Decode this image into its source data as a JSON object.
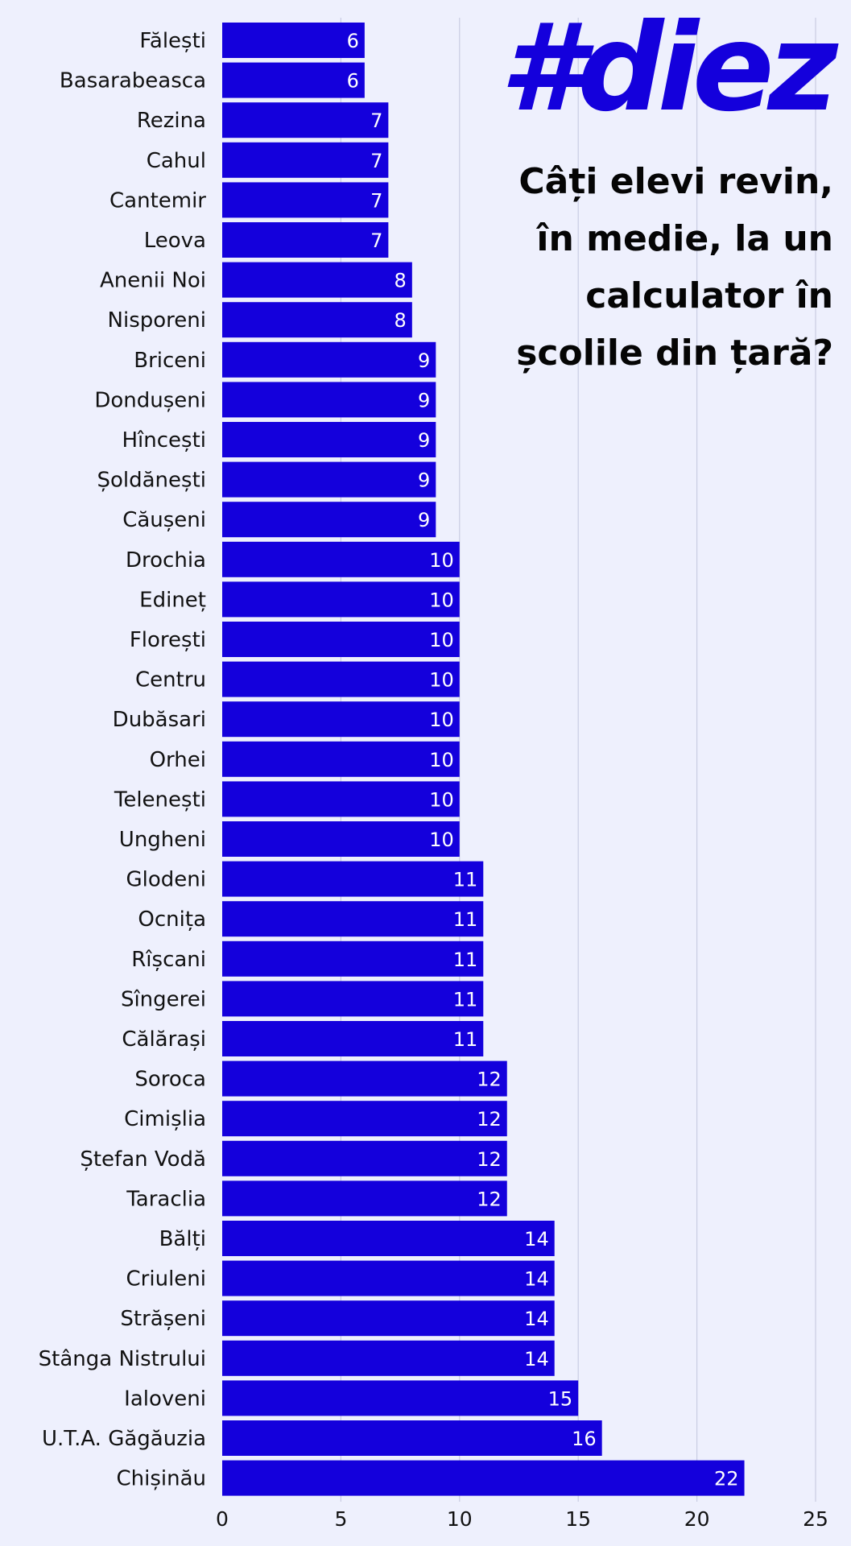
{
  "brand": "#diez",
  "chart_data": {
    "type": "bar",
    "orientation": "horizontal",
    "title": "Câți elevi revin, în medie, la un calculator în școlile din țară?",
    "xlabel": "",
    "ylabel": "",
    "xlim": [
      0,
      25
    ],
    "xticks": [
      0,
      5,
      10,
      15,
      20,
      25
    ],
    "grid": "vertical",
    "categories": [
      "Fălești",
      "Basarabeasca",
      "Rezina",
      "Cahul",
      "Cantemir",
      "Leova",
      "Anenii Noi",
      "Nisporeni",
      "Briceni",
      "Dondușeni",
      "Hîncești",
      "Șoldănești",
      "Căușeni",
      "Drochia",
      "Edineț",
      "Florești",
      "Centru",
      "Dubăsari",
      "Orhei",
      "Telenești",
      "Ungheni",
      "Glodeni",
      "Ocnița",
      "Rîșcani",
      "Sîngerei",
      "Călărași",
      "Soroca",
      "Cimișlia",
      "Ștefan Vodă",
      "Taraclia",
      "Bălți",
      "Criuleni",
      "Strășeni",
      "Stânga Nistrului",
      "Ialoveni",
      "U.T.A. Găgăuzia",
      "Chișinău"
    ],
    "values": [
      6,
      6,
      7,
      7,
      7,
      7,
      8,
      8,
      9,
      9,
      9,
      9,
      9,
      10,
      10,
      10,
      10,
      10,
      10,
      10,
      10,
      11,
      11,
      11,
      11,
      11,
      12,
      12,
      12,
      12,
      14,
      14,
      14,
      14,
      15,
      16,
      22
    ],
    "colors": {
      "bar": "#1400dc",
      "value_label": "#ffffff",
      "grid": "#c9cce2"
    }
  }
}
